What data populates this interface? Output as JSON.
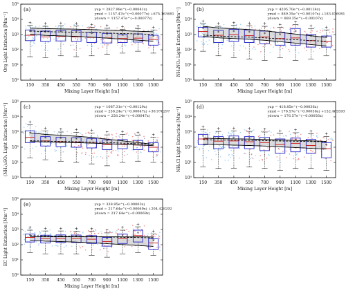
{
  "chart_data": [
    {
      "type": "box",
      "panel_label": "(a)",
      "ylabel": "Org Light Extinction [Mm⁻¹]",
      "xlabel": "Mixing Layer Height [m]",
      "categories": [
        "150",
        "350",
        "450",
        "550",
        "700",
        "900",
        "1100",
        "1300",
        "1500"
      ],
      "yscale": "log",
      "ylim": [
        1,
        100000
      ],
      "yticks": [
        "10⁰",
        "10¹",
        "10²",
        "10³",
        "10⁴",
        "10⁵"
      ],
      "equations": [
        "yup = 2827.98e^(−0.00041x)",
        "ymid = 1157.47e^(−0.00077x) +675.163681",
        "ydown = 1157.47e^(−0.00077x)"
      ],
      "boxes": [
        {
          "q1": 400,
          "median": 900,
          "q3": 2000,
          "lo": 35,
          "hi": 4000,
          "mean": 1500
        },
        {
          "q1": 350,
          "median": 700,
          "q3": 1700,
          "lo": 30,
          "hi": 3500,
          "mean": 1300
        },
        {
          "q1": 380,
          "median": 750,
          "q3": 1900,
          "lo": 40,
          "hi": 3800,
          "mean": 1400
        },
        {
          "q1": 350,
          "median": 700,
          "q3": 1800,
          "lo": 35,
          "hi": 3600,
          "mean": 1300
        },
        {
          "q1": 300,
          "median": 650,
          "q3": 1400,
          "lo": 40,
          "hi": 3000,
          "mean": 1100
        },
        {
          "q1": 280,
          "median": 600,
          "q3": 1200,
          "lo": 50,
          "hi": 2600,
          "mean": 950
        },
        {
          "q1": 300,
          "median": 550,
          "q3": 1000,
          "lo": 60,
          "hi": 2200,
          "mean": 850
        },
        {
          "q1": 320,
          "median": 580,
          "q3": 1100,
          "lo": 80,
          "hi": 2400,
          "mean": 900
        },
        {
          "q1": 200,
          "median": 480,
          "q3": 900,
          "lo": 60,
          "hi": 2000,
          "mean": 700
        }
      ],
      "bands": [
        {
          "name": "up",
          "a": 2827.98,
          "b": -0.00041,
          "c": 0
        },
        {
          "name": "mid",
          "a": 1157.47,
          "b": -0.00077,
          "c": 675.163681
        },
        {
          "name": "down",
          "a": 1157.47,
          "b": -0.00077,
          "c": 0
        }
      ]
    },
    {
      "type": "box",
      "panel_label": "(b)",
      "ylabel": "NH₄NO₃ Light Extinction [Mm⁻¹]",
      "xlabel": "Mixing Layer Height [m]",
      "categories": [
        "150",
        "350",
        "450",
        "550",
        "700",
        "900",
        "1100",
        "1300",
        "1500"
      ],
      "yscale": "log",
      "ylim": [
        1,
        100000
      ],
      "yticks": [
        "10⁰",
        "10¹",
        "10²",
        "10³",
        "10⁴",
        "10⁵"
      ],
      "equations": [
        "yup = 4205.70e^(−0.00124x)",
        "ymid = 889.35e^(−0.00107x) +183.036981",
        "ydown = 889.35e^(−0.00107x)"
      ],
      "boxes": [
        {
          "q1": 700,
          "median": 1600,
          "q3": 3000,
          "lo": 80,
          "hi": 5000,
          "mean": 2300
        },
        {
          "q1": 300,
          "median": 900,
          "q3": 1900,
          "lo": 40,
          "hi": 3500,
          "mean": 1300
        },
        {
          "q1": 350,
          "median": 1000,
          "q3": 2200,
          "lo": 30,
          "hi": 4000,
          "mean": 1500
        },
        {
          "q1": 300,
          "median": 850,
          "q3": 2000,
          "lo": 25,
          "hi": 3800,
          "mean": 1300
        },
        {
          "q1": 250,
          "median": 700,
          "q3": 1700,
          "lo": 20,
          "hi": 3500,
          "mean": 1100
        },
        {
          "q1": 200,
          "median": 550,
          "q3": 1400,
          "lo": 30,
          "hi": 3000,
          "mean": 900
        },
        {
          "q1": 200,
          "median": 600,
          "q3": 2500,
          "lo": 20,
          "hi": 4500,
          "mean": 1500
        },
        {
          "q1": 150,
          "median": 400,
          "q3": 1000,
          "lo": 25,
          "hi": 2500,
          "mean": 700
        },
        {
          "q1": 150,
          "median": 350,
          "q3": 800,
          "lo": 40,
          "hi": 2000,
          "mean": 600
        }
      ],
      "bands": [
        {
          "name": "up",
          "a": 4205.7,
          "b": -0.00124,
          "c": 0
        },
        {
          "name": "mid",
          "a": 889.35,
          "b": -0.00107,
          "c": 183.036981
        },
        {
          "name": "down",
          "a": 889.35,
          "b": -0.00107,
          "c": 0
        }
      ]
    },
    {
      "type": "box",
      "panel_label": "(c)",
      "ylabel": "(NH₄)₂SO₄ Light Extinction [Mm⁻¹]",
      "xlabel": "Mixing Layer Height [m]",
      "categories": [
        "150",
        "350",
        "450",
        "550",
        "700",
        "900",
        "1100",
        "1300",
        "1500"
      ],
      "yscale": "log",
      "ylim": [
        1,
        100000
      ],
      "yticks": [
        "10⁰",
        "10¹",
        "10²",
        "10³",
        "10⁴",
        "10⁵"
      ],
      "equations": [
        "yup = 1087.31e^(−0.00129x)",
        "ymid = 258.24e^(−0.00047x) +30.976297",
        "ydown = 258.24e^(−0.00047x)"
      ],
      "boxes": [
        {
          "q1": 200,
          "median": 450,
          "q3": 1200,
          "lo": 20,
          "hi": 3000,
          "mean": 800
        },
        {
          "q1": 120,
          "median": 260,
          "q3": 500,
          "lo": 15,
          "hi": 1200,
          "mean": 380
        },
        {
          "q1": 110,
          "median": 230,
          "q3": 450,
          "lo": 12,
          "hi": 1000,
          "mean": 350
        },
        {
          "q1": 100,
          "median": 210,
          "q3": 420,
          "lo": 10,
          "hi": 950,
          "mean": 330
        },
        {
          "q1": 90,
          "median": 190,
          "q3": 380,
          "lo": 8,
          "hi": 850,
          "mean": 290
        },
        {
          "q1": 70,
          "median": 150,
          "q3": 300,
          "lo": 6,
          "hi": 650,
          "mean": 230
        },
        {
          "q1": 80,
          "median": 160,
          "q3": 320,
          "lo": 10,
          "hi": 700,
          "mean": 250
        },
        {
          "q1": 70,
          "median": 140,
          "q3": 280,
          "lo": 12,
          "hi": 600,
          "mean": 210
        },
        {
          "q1": 50,
          "median": 100,
          "q3": 200,
          "lo": 10,
          "hi": 450,
          "mean": 150
        }
      ],
      "bands": [
        {
          "name": "up",
          "a": 1087.31,
          "b": -0.00129,
          "c": 0
        },
        {
          "name": "mid",
          "a": 258.24,
          "b": -0.00047,
          "c": 30.976297
        },
        {
          "name": "down",
          "a": 258.24,
          "b": -0.00047,
          "c": 0
        }
      ]
    },
    {
      "type": "box",
      "panel_label": "(d)",
      "ylabel": "NH₄Cl Light Extinction [Mm⁻¹]",
      "xlabel": "Mixing Layer Height [m]",
      "categories": [
        "150",
        "350",
        "450",
        "550",
        "700",
        "900",
        "1100",
        "1300",
        "1500"
      ],
      "yscale": "log",
      "ylim": [
        1,
        100000
      ],
      "yticks": [
        "10⁰",
        "10¹",
        "10²",
        "10³",
        "10⁴",
        "10⁵"
      ],
      "equations": [
        "yup = 418.85e^(−0.00036x)",
        "ymid = 176.57e^(−0.00056x) +152.465593",
        "ydown = 176.57e^(−0.00056x)"
      ],
      "boxes": [
        {
          "q1": 150,
          "median": 350,
          "q3": 700,
          "lo": 5,
          "hi": 1500,
          "mean": 500
        },
        {
          "q1": 80,
          "median": 250,
          "q3": 500,
          "lo": 4,
          "hi": 1100,
          "mean": 350
        },
        {
          "q1": 90,
          "median": 260,
          "q3": 550,
          "lo": 4,
          "hi": 1200,
          "mean": 380
        },
        {
          "q1": 80,
          "median": 230,
          "q3": 500,
          "lo": 5,
          "hi": 1100,
          "mean": 350
        },
        {
          "q1": 60,
          "median": 200,
          "q3": 450,
          "lo": 4,
          "hi": 1000,
          "mean": 300
        },
        {
          "q1": 40,
          "median": 150,
          "q3": 350,
          "lo": 3,
          "hi": 800,
          "mean": 230
        },
        {
          "q1": 50,
          "median": 180,
          "q3": 400,
          "lo": 4,
          "hi": 900,
          "mean": 270
        },
        {
          "q1": 40,
          "median": 130,
          "q3": 330,
          "lo": 4,
          "hi": 750,
          "mean": 220
        },
        {
          "q1": 20,
          "median": 80,
          "q3": 200,
          "lo": 3,
          "hi": 500,
          "mean": 130
        }
      ],
      "bands": [
        {
          "name": "up",
          "a": 418.85,
          "b": -0.00036,
          "c": 0
        },
        {
          "name": "mid",
          "a": 176.57,
          "b": -0.00056,
          "c": 152.465593
        },
        {
          "name": "down",
          "a": 176.57,
          "b": -0.00056,
          "c": 0
        }
      ]
    },
    {
      "type": "box",
      "panel_label": "(e)",
      "ylabel": "EC Light Extinction [Mm⁻¹]",
      "xlabel": "Mixing Layer Height [m]",
      "categories": [
        "150",
        "350",
        "450",
        "550",
        "700",
        "900",
        "1100",
        "1300",
        "1500"
      ],
      "yscale": "log",
      "ylim": [
        1,
        100000
      ],
      "yticks": [
        "10⁰",
        "10¹",
        "10²",
        "10³",
        "10⁴",
        "10⁵"
      ],
      "equations": [
        "yup = 338.95e^(−0.00003x)",
        "ymid = 217.64e^(−0.00069x) +204.428292",
        "ydown = 217.64e^(−0.00069x)"
      ],
      "boxes": [
        {
          "q1": 150,
          "median": 300,
          "q3": 500,
          "lo": 30,
          "hi": 900,
          "mean": 380
        },
        {
          "q1": 130,
          "median": 250,
          "q3": 420,
          "lo": 25,
          "hi": 800,
          "mean": 320
        },
        {
          "q1": 140,
          "median": 260,
          "q3": 440,
          "lo": 25,
          "hi": 800,
          "mean": 330
        },
        {
          "q1": 140,
          "median": 260,
          "q3": 430,
          "lo": 25,
          "hi": 780,
          "mean": 320
        },
        {
          "q1": 120,
          "median": 230,
          "q3": 400,
          "lo": 20,
          "hi": 750,
          "mean": 300
        },
        {
          "q1": 80,
          "median": 160,
          "q3": 300,
          "lo": 15,
          "hi": 600,
          "mean": 220
        },
        {
          "q1": 120,
          "median": 250,
          "q3": 500,
          "lo": 25,
          "hi": 900,
          "mean": 350
        },
        {
          "q1": 150,
          "median": 400,
          "q3": 900,
          "lo": 30,
          "hi": 1500,
          "mean": 550
        },
        {
          "q1": 50,
          "median": 130,
          "q3": 250,
          "lo": 20,
          "hi": 500,
          "mean": 170
        }
      ],
      "bands": [
        {
          "name": "up",
          "a": 338.95,
          "b": -3e-05,
          "c": 0
        },
        {
          "name": "mid",
          "a": 217.64,
          "b": -0.00069,
          "c": 204.428292
        },
        {
          "name": "down",
          "a": 217.64,
          "b": -0.00069,
          "c": 0
        }
      ]
    }
  ],
  "colors": {
    "box": "#3333cc",
    "median": "#cc2222",
    "mean": "#222222",
    "band_fill": "#d0d0d0",
    "band_line": "#000000",
    "scatter_low": "#8ec7f0",
    "scatter_high": "#f07070",
    "outlier": "#dd2222",
    "whisker": "#222222"
  }
}
